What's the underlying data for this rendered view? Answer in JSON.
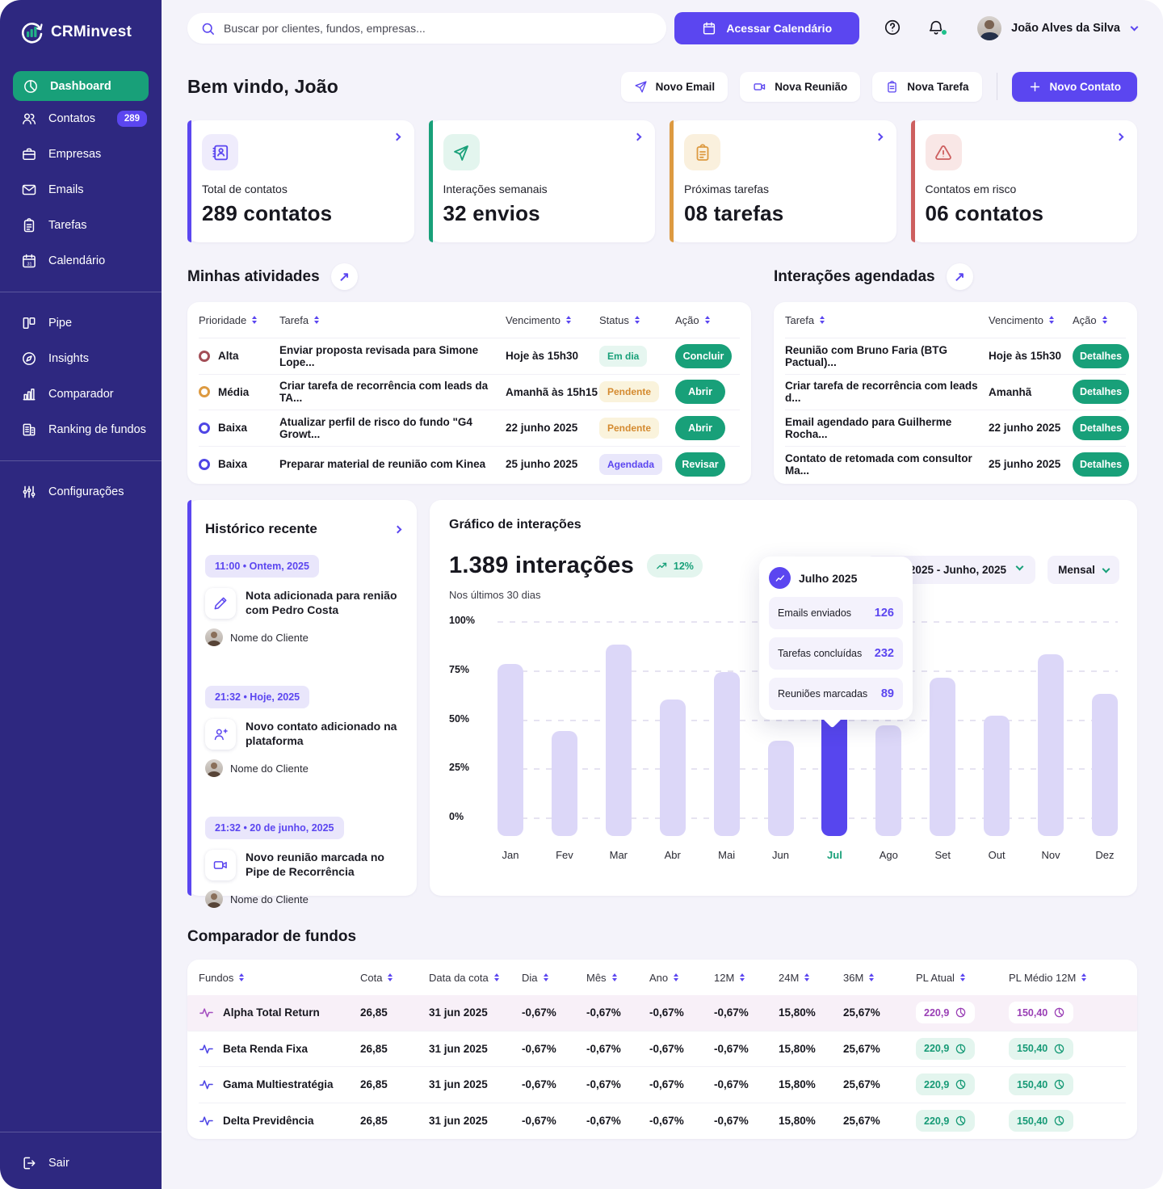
{
  "colors": {
    "sidebar_bg": "#2E2880",
    "accent_purple": "#5B46F0",
    "accent_green": "#18A079",
    "warning_orange": "#DD9A41",
    "danger_red": "#CD5F5F",
    "page_bg": "#F4F3FA",
    "bar_default": "#DCD7F8",
    "bar_active": "#5746EE"
  },
  "sidebar": {
    "logo_text": "CRMinvest",
    "items": [
      {
        "label": "Dashboard"
      },
      {
        "label": "Contatos",
        "badge": "289"
      },
      {
        "label": "Empresas"
      },
      {
        "label": "Emails"
      },
      {
        "label": "Tarefas"
      },
      {
        "label": "Calendário"
      },
      {
        "label": "Pipe"
      },
      {
        "label": "Insights"
      },
      {
        "label": "Comparador"
      },
      {
        "label": "Ranking de fundos"
      },
      {
        "label": "Configurações"
      },
      {
        "label": "Sair"
      }
    ]
  },
  "topbar": {
    "search_placeholder": "Buscar por clientes, fundos, empresas...",
    "calendar_button": "Acessar Calendário",
    "user_name": "João Alves da Silva"
  },
  "header": {
    "welcome": "Bem vindo, João",
    "new_email": "Novo Email",
    "new_meeting": "Nova Reunião",
    "new_task": "Nova Tarefa",
    "new_contact": "Novo Contato"
  },
  "stat_cards": [
    {
      "label": "Total de contatos",
      "value": "289 contatos"
    },
    {
      "label": "Interações semanais",
      "value": "32 envios"
    },
    {
      "label": "Próximas tarefas",
      "value": "08 tarefas"
    },
    {
      "label": "Contatos em risco",
      "value": "06 contatos"
    }
  ],
  "activities": {
    "title": "Minhas atividades",
    "columns": [
      "Prioridade",
      "Tarefa",
      "Vencimento",
      "Status",
      "Ação"
    ],
    "rows": [
      {
        "priority": "Alta",
        "task": "Enviar proposta revisada para Simone Lope...",
        "due": "Hoje às 15h30",
        "status": "Em dia",
        "action": "Concluir"
      },
      {
        "priority": "Média",
        "task": "Criar tarefa de recorrência com leads da TA...",
        "due": "Amanhã às 15h15",
        "status": "Pendente",
        "action": "Abrir"
      },
      {
        "priority": "Baixa",
        "task": "Atualizar perfil de risco do fundo \"G4 Growt...",
        "due": "22 junho 2025",
        "status": "Pendente",
        "action": "Abrir"
      },
      {
        "priority": "Baixa",
        "task": "Preparar material de reunião com Kinea",
        "due": "25 junho 2025",
        "status": "Agendada",
        "action": "Revisar"
      }
    ]
  },
  "interactions": {
    "title": "Interações agendadas",
    "columns": [
      "Tarefa",
      "Vencimento",
      "Ação"
    ],
    "rows": [
      {
        "task": "Reunião com Bruno Faria (BTG Pactual)...",
        "due": "Hoje às 15h30",
        "action": "Detalhes"
      },
      {
        "task": "Criar tarefa de recorrência com leads d...",
        "due": "Amanhã",
        "action": "Detalhes"
      },
      {
        "task": "Email agendado para Guilherme Rocha...",
        "due": "22 junho 2025",
        "action": "Detalhes"
      },
      {
        "task": "Contato de retomada com consultor Ma...",
        "due": "25 junho 2025",
        "action": "Detalhes"
      }
    ]
  },
  "history": {
    "title": "Histórico recente",
    "entries": [
      {
        "time": "11:00 • Ontem, 2025",
        "text": "Nota adicionada para renião com Pedro Costa",
        "client": "Nome do Cliente"
      },
      {
        "time": "21:32 • Hoje, 2025",
        "text": "Novo contato adicionado na plataforma",
        "client": "Nome do Cliente"
      },
      {
        "time": "21:32 • 20 de junho, 2025",
        "text": "Novo reunião marcada no Pipe de Recorrência",
        "client": "Nome do Cliente"
      }
    ]
  },
  "chart_card": {
    "title": "Gráfico de interações",
    "total": "1.389 interações",
    "trend": "12%",
    "subtitle": "Nos últimos 30 dias",
    "range_select": "Janeiro, 2025 - Junho, 2025",
    "period_select": "Mensal",
    "tooltip": {
      "title": "Julho 2025",
      "stats": [
        {
          "label": "Emails enviados",
          "value": "126"
        },
        {
          "label": "Tarefas concluídas",
          "value": "232"
        },
        {
          "label": "Reuniões marcadas",
          "value": "89"
        }
      ]
    }
  },
  "chart_data": {
    "type": "bar",
    "title": "Gráfico de interações",
    "categories": [
      "Jan",
      "Fev",
      "Mar",
      "Abr",
      "Mai",
      "Jun",
      "Jul",
      "Ago",
      "Set",
      "Out",
      "Nov",
      "Dez"
    ],
    "values": [
      78,
      44,
      88,
      60,
      74,
      39,
      63,
      47,
      71,
      52,
      83,
      63
    ],
    "unit": "%",
    "highlight_index": 6,
    "y_ticks": [
      "100%",
      "75%",
      "50%",
      "25%",
      "0%"
    ],
    "ylim": [
      0,
      100
    ],
    "grid": "dashed-horizontal",
    "legend": "none"
  },
  "funds": {
    "title": "Comparador de fundos",
    "columns": [
      "Fundos",
      "Cota",
      "Data da cota",
      "Dia",
      "Mês",
      "Ano",
      "12M",
      "24M",
      "36M",
      "PL Atual",
      "PL Médio 12M"
    ],
    "rows": [
      {
        "name": "Alpha Total Return",
        "cota": "26,85",
        "data": "31 jun 2025",
        "dia": "-0,67%",
        "mes": "-0,67%",
        "ano": "-0,67%",
        "m12": "-0,67%",
        "m24": "15,80%",
        "m36": "25,67%",
        "pl_atual": "220,9",
        "pl_medio": "150,40"
      },
      {
        "name": "Beta Renda Fixa",
        "cota": "26,85",
        "data": "31 jun 2025",
        "dia": "-0,67%",
        "mes": "-0,67%",
        "ano": "-0,67%",
        "m12": "-0,67%",
        "m24": "15,80%",
        "m36": "25,67%",
        "pl_atual": "220,9",
        "pl_medio": "150,40"
      },
      {
        "name": "Gama Multiestratégia",
        "cota": "26,85",
        "data": "31 jun 2025",
        "dia": "-0,67%",
        "mes": "-0,67%",
        "ano": "-0,67%",
        "m12": "-0,67%",
        "m24": "15,80%",
        "m36": "25,67%",
        "pl_atual": "220,9",
        "pl_medio": "150,40"
      },
      {
        "name": "Delta Previdência",
        "cota": "26,85",
        "data": "31 jun 2025",
        "dia": "-0,67%",
        "mes": "-0,67%",
        "ano": "-0,67%",
        "m12": "-0,67%",
        "m24": "15,80%",
        "m36": "25,67%",
        "pl_atual": "220,9",
        "pl_medio": "150,40"
      }
    ]
  }
}
